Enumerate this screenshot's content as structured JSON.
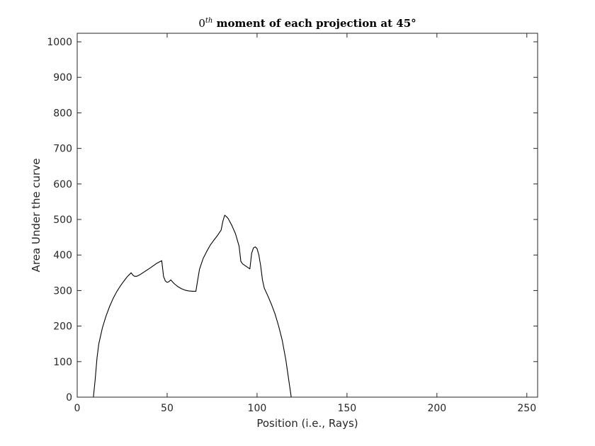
{
  "chart_data": {
    "type": "line",
    "title_main": "0",
    "title_sup": "th",
    "title_rest": " moment of each projection at 45°",
    "xlabel": "Position (i.e., Rays)",
    "ylabel": "Area Under the curve",
    "xlim": [
      0,
      256
    ],
    "ylim": [
      0,
      1024
    ],
    "xticks": [
      0,
      50,
      100,
      150,
      200,
      250
    ],
    "yticks": [
      0,
      100,
      200,
      300,
      400,
      500,
      600,
      700,
      800,
      900,
      1000
    ],
    "grid": false,
    "legend": "none",
    "colors": {
      "line": "#000000",
      "axes": "#262626",
      "background": "#ffffff"
    },
    "series": [
      {
        "x": [
          0,
          5,
          9,
          10,
          11,
          12,
          14,
          16,
          18,
          20,
          22,
          24,
          26,
          28,
          30,
          31,
          32,
          33,
          35,
          38,
          41,
          44,
          47,
          48,
          49,
          50,
          51,
          52,
          54,
          56,
          58,
          60,
          62,
          64,
          66,
          67,
          68,
          70,
          72,
          74,
          76,
          78,
          80,
          81,
          82,
          83,
          84,
          86,
          88,
          90,
          91,
          92,
          94,
          96,
          97,
          98,
          99,
          100,
          101,
          102,
          103,
          104,
          106,
          108,
          110,
          112,
          114,
          116,
          117,
          118,
          119,
          120,
          121,
          122,
          125,
          128
        ],
        "values": [
          0,
          0,
          0,
          50,
          110,
          150,
          195,
          228,
          255,
          278,
          297,
          313,
          327,
          340,
          350,
          343,
          340,
          340,
          345,
          355,
          365,
          376,
          384,
          340,
          327,
          323,
          325,
          330,
          319,
          311,
          305,
          301,
          299,
          298,
          298,
          330,
          360,
          390,
          410,
          428,
          442,
          455,
          470,
          495,
          512,
          508,
          502,
          483,
          460,
          425,
          382,
          375,
          368,
          361,
          405,
          420,
          423,
          418,
          400,
          370,
          330,
          307,
          285,
          261,
          234,
          200,
          160,
          105,
          70,
          35,
          0,
          0,
          0,
          0,
          0,
          0
        ]
      }
    ]
  }
}
